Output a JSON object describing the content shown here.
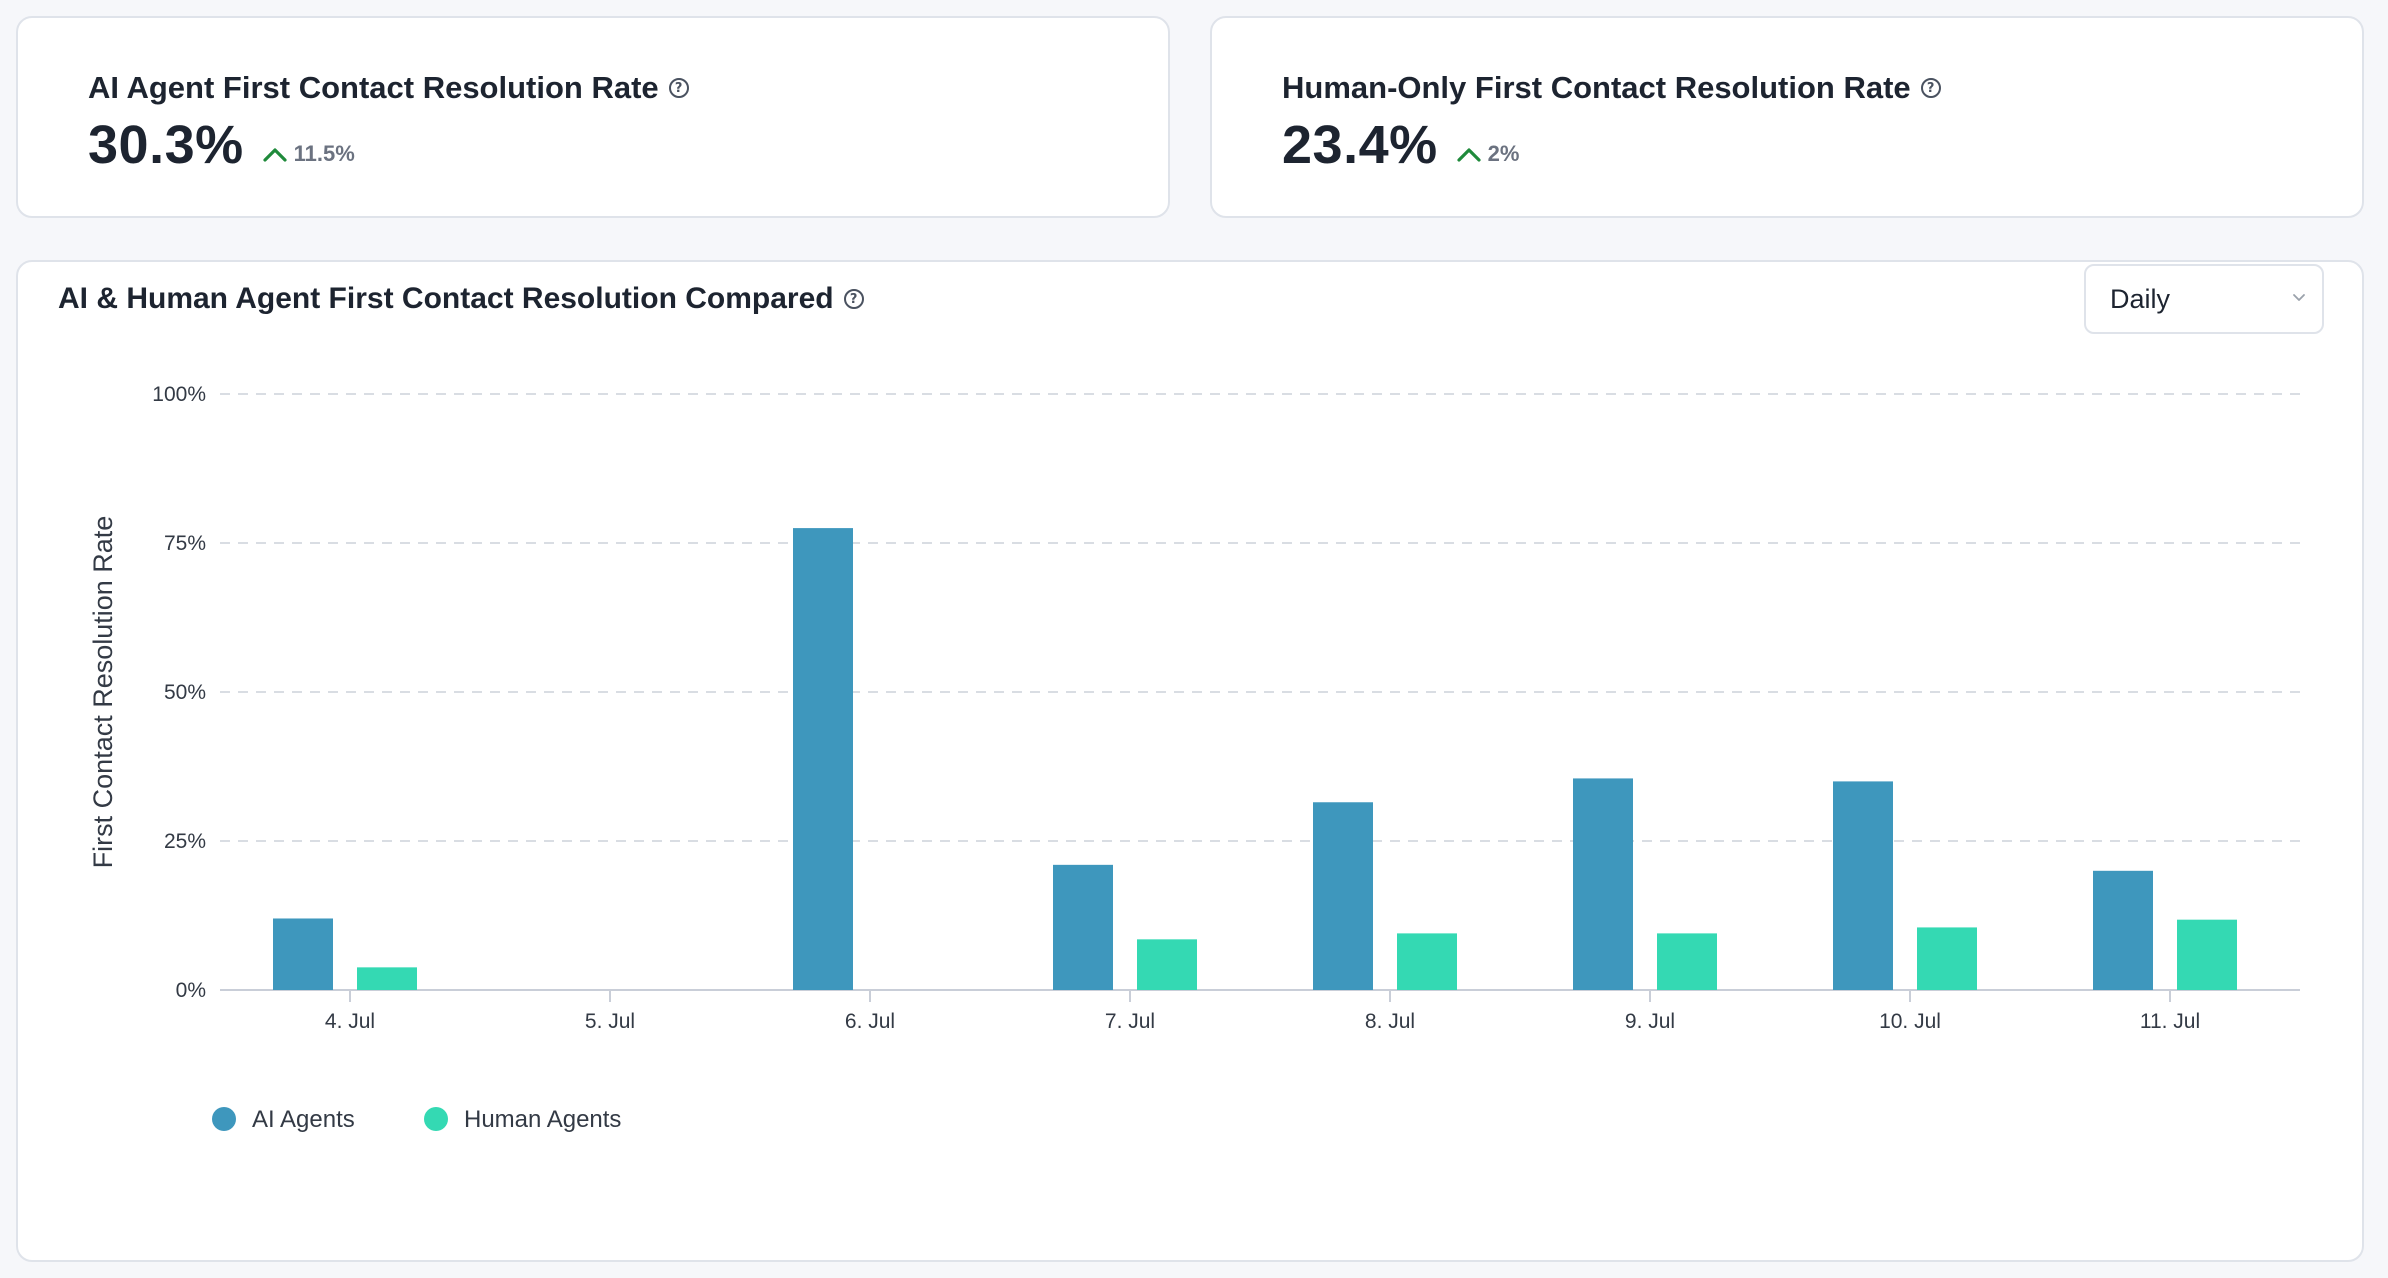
{
  "kpis": {
    "ai": {
      "title": "AI Agent First Contact Resolution Rate",
      "value": "30.3%",
      "delta": "11.5%"
    },
    "human": {
      "title": "Human-Only First Contact Resolution Rate",
      "value": "23.4%",
      "delta": "2%"
    }
  },
  "icons": {
    "help": "question-circle-icon",
    "trend": "arrow-up-icon",
    "dropdown": "chevron-down-icon"
  },
  "colors": {
    "ai": "#3e97bd",
    "human": "#34d9b3",
    "up": "#1f8a3b",
    "grid": "#d9dde3"
  },
  "chart_panel": {
    "title": "AI & Human Agent First Contact Resolution Compared",
    "granularity": {
      "selected": "Daily"
    }
  },
  "chart_data": {
    "type": "bar",
    "title": "AI & Human Agent First Contact Resolution Compared",
    "xlabel": "",
    "ylabel": "First Contact Resolution Rate",
    "ylim": [
      0,
      100
    ],
    "yticks": [
      0,
      25,
      50,
      75,
      100
    ],
    "ytick_labels": [
      "0%",
      "25%",
      "50%",
      "75%",
      "100%"
    ],
    "grid": true,
    "legend_position": "bottom-left",
    "categories": [
      "4. Jul",
      "5. Jul",
      "6. Jul",
      "7. Jul",
      "8. Jul",
      "9. Jul",
      "10. Jul",
      "11. Jul"
    ],
    "series": [
      {
        "name": "AI Agents",
        "values": [
          12,
          0,
          77.5,
          21,
          31.5,
          35.5,
          35,
          20
        ]
      },
      {
        "name": "Human Agents",
        "values": [
          3.8,
          0,
          0,
          8.5,
          9.5,
          9.5,
          10.5,
          11.8
        ]
      }
    ]
  }
}
